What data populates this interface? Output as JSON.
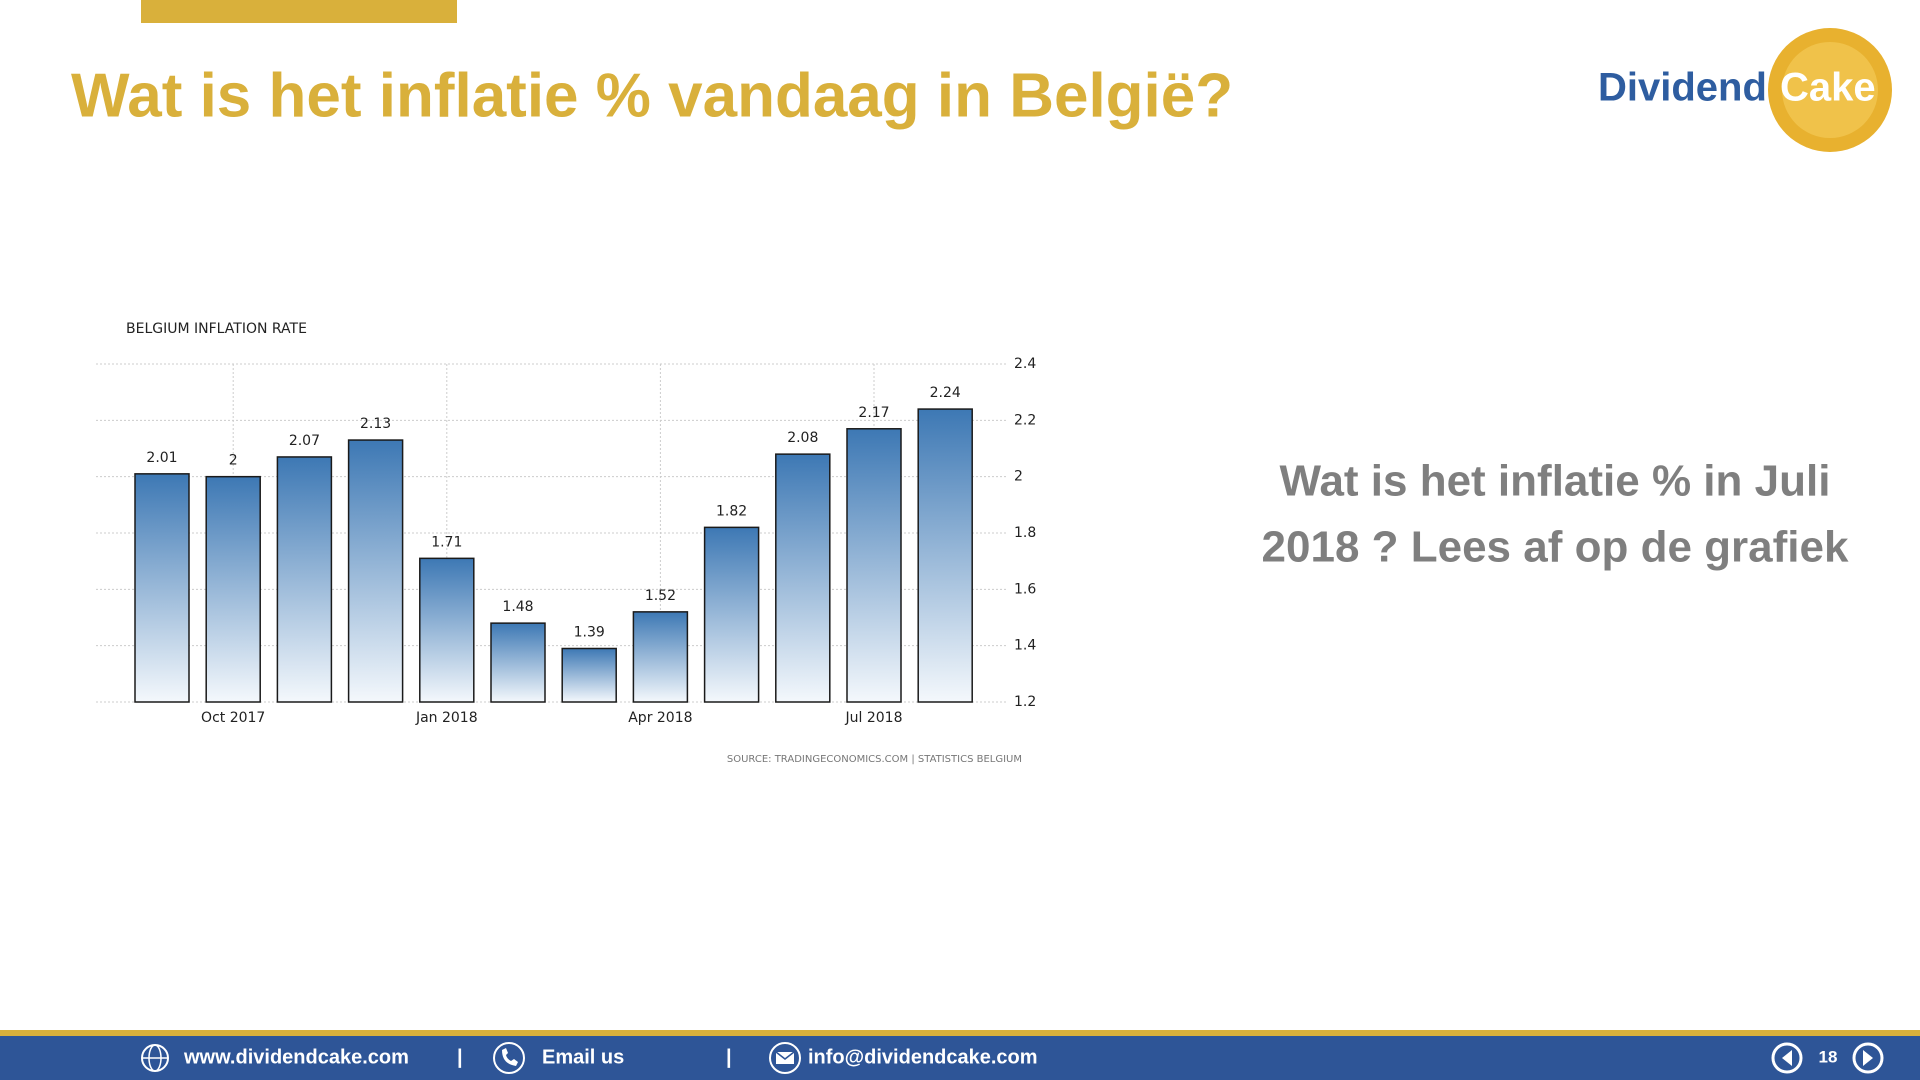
{
  "slide": {
    "title": "Wat is het inflatie % vandaag in België?",
    "logo": {
      "word1": "Dividend",
      "word2": "Cake"
    },
    "question": [
      "Wat is het inflatie % in Juli",
      "2018 ? Lees af op de grafiek"
    ],
    "footer": {
      "website": "www.dividendcake.com",
      "separator": "|",
      "email_label": "Email us",
      "email": "info@dividendcake.com",
      "page": "18"
    }
  },
  "chart_data": {
    "type": "bar",
    "title": "BELGIUM INFLATION RATE",
    "source": "SOURCE: TRADINGECONOMICS.COM | STATISTICS BELGIUM",
    "categories": [
      null,
      "Oct 2017",
      null,
      null,
      "Jan 2018",
      null,
      null,
      "Apr 2018",
      null,
      null,
      "Jul 2018",
      null
    ],
    "values": [
      2.01,
      2,
      2.07,
      2.13,
      1.71,
      1.48,
      1.39,
      1.52,
      1.82,
      2.08,
      2.17,
      2.24
    ],
    "color": "#3d78b4",
    "ylim": [
      1.2,
      2.4
    ],
    "yticks": [
      1.2,
      1.4,
      1.6,
      1.8,
      2,
      2.2,
      2.4
    ],
    "y_axis_side": "right",
    "grid": true
  }
}
